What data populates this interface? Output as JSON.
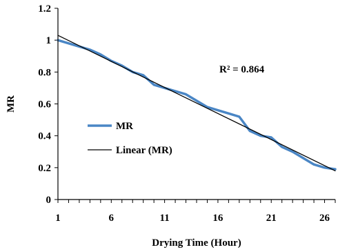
{
  "chart_data": {
    "type": "line",
    "xlabel": "Drying Time (Hour)",
    "ylabel": "MR",
    "xlim": [
      1,
      27
    ],
    "ylim": [
      0,
      1.2
    ],
    "x_ticks": [
      "1",
      "6",
      "11",
      "16",
      "21",
      "26"
    ],
    "y_ticks": [
      "0",
      "0.2",
      "0.4",
      "0.6",
      "0.8",
      "1",
      "1.2"
    ],
    "grid": false,
    "legend_placement": "center-left",
    "annotation": "R² = 0.864",
    "series": [
      {
        "name": "MR",
        "color": "#4a86c5",
        "x": [
          1,
          2,
          3,
          4,
          5,
          6,
          7,
          8,
          9,
          10,
          11,
          12,
          13,
          14,
          15,
          16,
          17,
          18,
          19,
          20,
          21,
          22,
          23,
          24,
          25,
          26,
          27
        ],
        "y": [
          1.0,
          0.98,
          0.96,
          0.94,
          0.91,
          0.87,
          0.84,
          0.8,
          0.78,
          0.72,
          0.7,
          0.68,
          0.66,
          0.62,
          0.58,
          0.56,
          0.54,
          0.52,
          0.43,
          0.4,
          0.39,
          0.33,
          0.3,
          0.26,
          0.22,
          0.2,
          0.19
        ]
      },
      {
        "name": "Linear (MR)",
        "color": "#000000",
        "x": [
          1,
          27
        ],
        "y": [
          1.03,
          0.18
        ]
      }
    ]
  }
}
